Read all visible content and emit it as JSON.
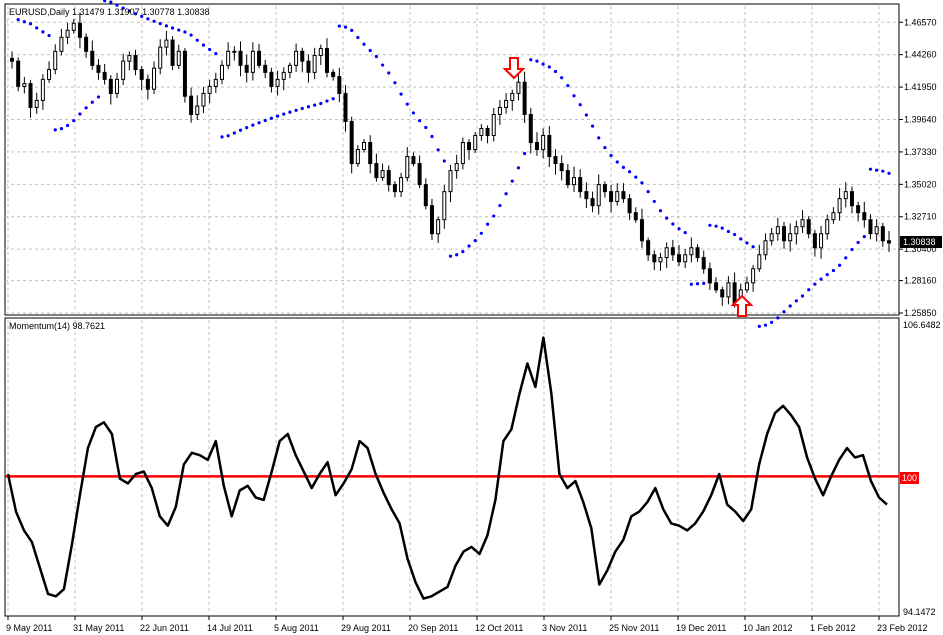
{
  "main": {
    "title": "EURUSD,Daily  1.31479 1.31907 1.30778 1.30838",
    "current_price": "1.30838",
    "y_ticks": [
      "1.46570",
      "1.44260",
      "1.41950",
      "1.39640",
      "1.37330",
      "1.35020",
      "1.32710",
      "1.30400",
      "1.28160",
      "1.25850"
    ]
  },
  "momentum": {
    "title": "Momentum(14) 98.7621",
    "y_ticks": [
      "106.6482",
      "100",
      "94.1472"
    ]
  },
  "x_ticks": [
    "9 May 2011",
    "31 May 2011",
    "22 Jun 2011",
    "14 Jul 2011",
    "5 Aug 2011",
    "29 Aug 2011",
    "20 Sep 2011",
    "12 Oct 2011",
    "3 Nov 2011",
    "25 Nov 2011",
    "19 Dec 2011",
    "10 Jan 2012",
    "1 Feb 2012",
    "23 Feb 2012"
  ],
  "colors": {
    "psar": "#0000ff",
    "ref_line": "#ff0000",
    "arrow": "#ff0000",
    "candle": "#000000",
    "grid": "#c0c0c0"
  },
  "chart_data": [
    {
      "type": "candlestick",
      "title": "EURUSD,Daily",
      "ylim": [
        1.2585,
        1.4773
      ],
      "close": [
        1.438,
        1.42,
        1.422,
        1.405,
        1.41,
        1.425,
        1.432,
        1.445,
        1.455,
        1.46,
        1.465,
        1.455,
        1.445,
        1.435,
        1.43,
        1.425,
        1.415,
        1.425,
        1.438,
        1.442,
        1.432,
        1.425,
        1.418,
        1.433,
        1.448,
        1.453,
        1.435,
        1.445,
        1.413,
        1.4,
        1.406,
        1.415,
        1.42,
        1.425,
        1.435,
        1.445,
        1.445,
        1.435,
        1.43,
        1.445,
        1.435,
        1.43,
        1.42,
        1.425,
        1.43,
        1.435,
        1.445,
        1.438,
        1.43,
        1.442,
        1.447,
        1.43,
        1.427,
        1.415,
        1.395,
        1.365,
        1.375,
        1.38,
        1.365,
        1.355,
        1.36,
        1.35,
        1.345,
        1.355,
        1.37,
        1.365,
        1.35,
        1.335,
        1.315,
        1.325,
        1.345,
        1.36,
        1.365,
        1.38,
        1.375,
        1.385,
        1.39,
        1.385,
        1.4,
        1.405,
        1.41,
        1.415,
        1.423,
        1.4,
        1.38,
        1.375,
        1.385,
        1.37,
        1.365,
        1.36,
        1.35,
        1.355,
        1.345,
        1.34,
        1.335,
        1.35,
        1.345,
        1.338,
        1.345,
        1.34,
        1.33,
        1.325,
        1.31,
        1.3,
        1.295,
        1.298,
        1.305,
        1.3,
        1.295,
        1.3,
        1.305,
        1.298,
        1.29,
        1.28,
        1.275,
        1.27,
        1.28,
        1.265,
        1.275,
        1.28,
        1.29,
        1.3,
        1.31,
        1.315,
        1.32,
        1.31,
        1.315,
        1.32,
        1.325,
        1.315,
        1.305,
        1.315,
        1.325,
        1.33,
        1.34,
        1.345,
        1.335,
        1.33,
        1.325,
        1.315,
        1.32,
        1.31,
        1.3084
      ],
      "parabolic_sar": "dotted",
      "signals": [
        {
          "type": "sell",
          "x": "12 Oct 2011"
        },
        {
          "type": "buy",
          "x": "10 Jan 2012"
        }
      ],
      "current_price": 1.30838
    },
    {
      "type": "line",
      "title": "Momentum(14)",
      "ylim": [
        94.1472,
        106.6482
      ],
      "reference": 100,
      "values": [
        100.1,
        98.5,
        97.7,
        97.2,
        96.1,
        95.0,
        94.9,
        95.2,
        97.1,
        99.2,
        101.2,
        102.1,
        102.3,
        101.8,
        99.9,
        99.7,
        100.1,
        100.2,
        99.5,
        98.3,
        97.9,
        98.7,
        100.5,
        101.0,
        100.9,
        100.7,
        101.5,
        99.6,
        98.3,
        99.4,
        99.6,
        99.1,
        99.0,
        100.2,
        101.5,
        101.8,
        100.9,
        100.2,
        99.5,
        100.1,
        100.6,
        99.2,
        99.7,
        100.3,
        101.5,
        101.2,
        100.1,
        99.3,
        98.6,
        98.0,
        96.5,
        95.5,
        94.8,
        94.9,
        95.1,
        95.3,
        96.2,
        96.8,
        97.0,
        96.7,
        97.5,
        99.0,
        101.5,
        102.0,
        103.5,
        104.8,
        103.8,
        105.9,
        103.5,
        100.1,
        99.5,
        99.8,
        98.9,
        97.8,
        95.4,
        96.0,
        96.8,
        97.3,
        98.3,
        98.5,
        98.9,
        99.5,
        98.6,
        98.0,
        97.9,
        97.7,
        98.0,
        98.5,
        99.2,
        100.1,
        98.8,
        98.5,
        98.1,
        98.6,
        100.5,
        101.8,
        102.7,
        103.0,
        102.6,
        102.1,
        100.8,
        99.9,
        99.2,
        100.0,
        100.7,
        101.2,
        100.8,
        100.9,
        99.8,
        99.1,
        98.8
      ]
    }
  ]
}
